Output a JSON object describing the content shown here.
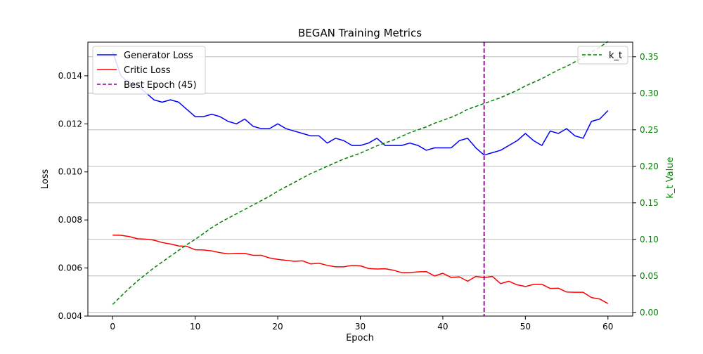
{
  "chart_data": {
    "type": "line",
    "title": "BEGAN Training Metrics",
    "xlabel": "Epoch",
    "ylabel_left": "Loss",
    "ylabel_right": "k_t Value",
    "xlim": [
      -3,
      63
    ],
    "ylim_left": [
      0.004,
      0.0154
    ],
    "ylim_right": [
      -0.005,
      0.37
    ],
    "x_ticks": [
      0,
      10,
      20,
      30,
      40,
      50,
      60
    ],
    "y_ticks_left": [
      0.004,
      0.006,
      0.008,
      0.01,
      0.012,
      0.014
    ],
    "y_ticks_right": [
      0.0,
      0.05,
      0.1,
      0.15,
      0.2,
      0.25,
      0.3,
      0.35
    ],
    "x_tick_labels": [
      "0",
      "10",
      "20",
      "30",
      "40",
      "50",
      "60"
    ],
    "y_tick_labels_left": [
      "0.004",
      "0.006",
      "0.008",
      "0.010",
      "0.012",
      "0.014"
    ],
    "y_tick_labels_right": [
      "0.00",
      "0.05",
      "0.10",
      "0.15",
      "0.20",
      "0.25",
      "0.30",
      "0.35"
    ],
    "grid": "horizontal (right axis)",
    "x": [
      0,
      1,
      2,
      3,
      4,
      5,
      6,
      7,
      8,
      9,
      10,
      11,
      12,
      13,
      14,
      15,
      16,
      17,
      18,
      19,
      20,
      21,
      22,
      23,
      24,
      25,
      26,
      27,
      28,
      29,
      30,
      31,
      32,
      33,
      34,
      35,
      36,
      37,
      38,
      39,
      40,
      41,
      42,
      43,
      44,
      45,
      46,
      47,
      48,
      49,
      50,
      51,
      52,
      53,
      54,
      55,
      56,
      57,
      58,
      59,
      60
    ],
    "series": [
      {
        "name": "Generator Loss",
        "axis": "left",
        "color": "#0000ff",
        "style": "solid",
        "values": [
          0.015,
          0.014,
          0.0137,
          0.0136,
          0.0133,
          0.013,
          0.0129,
          0.013,
          0.0129,
          0.0126,
          0.0123,
          0.0123,
          0.0124,
          0.0123,
          0.0121,
          0.012,
          0.0122,
          0.0119,
          0.0118,
          0.0118,
          0.012,
          0.0118,
          0.0117,
          0.0116,
          0.0115,
          0.0115,
          0.0112,
          0.0114,
          0.0113,
          0.0111,
          0.0111,
          0.0112,
          0.0114,
          0.0111,
          0.0111,
          0.0111,
          0.0112,
          0.0111,
          0.0109,
          0.011,
          0.011,
          0.011,
          0.0113,
          0.0114,
          0.011,
          0.0107,
          0.0108,
          0.0109,
          0.0111,
          0.0113,
          0.0116,
          0.0113,
          0.0111,
          0.0117,
          0.0116,
          0.0118,
          0.0115,
          0.0114,
          0.0121,
          0.0122,
          0.01255
        ]
      },
      {
        "name": "Critic Loss",
        "axis": "left",
        "color": "#ff0000",
        "style": "solid",
        "values": [
          0.00737,
          0.00736,
          0.00731,
          0.00722,
          0.0072,
          0.00716,
          0.00706,
          0.007,
          0.00692,
          0.0069,
          0.00676,
          0.00675,
          0.00671,
          0.00664,
          0.00659,
          0.00661,
          0.00661,
          0.00653,
          0.00653,
          0.00642,
          0.00636,
          0.00632,
          0.00628,
          0.0063,
          0.00617,
          0.0062,
          0.00611,
          0.00605,
          0.00605,
          0.00611,
          0.00609,
          0.00598,
          0.00596,
          0.00597,
          0.00591,
          0.00581,
          0.00581,
          0.00584,
          0.00585,
          0.00567,
          0.00578,
          0.00561,
          0.00563,
          0.00545,
          0.00565,
          0.0056,
          0.00565,
          0.00535,
          0.00545,
          0.0053,
          0.00523,
          0.00532,
          0.00532,
          0.00515,
          0.00516,
          0.005,
          0.00499,
          0.00499,
          0.00477,
          0.00471,
          0.00452
        ]
      },
      {
        "name": "k_t",
        "axis": "right",
        "color": "#008000",
        "style": "dashed",
        "values": [
          0.011,
          0.022,
          0.033,
          0.043,
          0.052,
          0.061,
          0.069,
          0.077,
          0.085,
          0.093,
          0.1,
          0.108,
          0.116,
          0.123,
          0.129,
          0.135,
          0.141,
          0.147,
          0.153,
          0.159,
          0.166,
          0.172,
          0.178,
          0.184,
          0.19,
          0.195,
          0.2,
          0.205,
          0.21,
          0.214,
          0.218,
          0.223,
          0.228,
          0.232,
          0.236,
          0.241,
          0.246,
          0.25,
          0.254,
          0.259,
          0.263,
          0.267,
          0.272,
          0.278,
          0.282,
          0.286,
          0.29,
          0.294,
          0.299,
          0.304,
          0.31,
          0.315,
          0.32,
          0.326,
          0.332,
          0.337,
          0.343,
          0.349,
          0.357,
          0.363,
          0.371
        ]
      }
    ],
    "best_epoch_line": {
      "label": "Best Epoch (45)",
      "x": 45,
      "color": "#800080",
      "style": "dashed"
    },
    "legend_left": [
      "Generator Loss",
      "Critic Loss",
      "Best Epoch (45)"
    ],
    "legend_left_placement": "top-left",
    "legend_right": [
      "k_t"
    ],
    "legend_right_placement": "top-right"
  }
}
